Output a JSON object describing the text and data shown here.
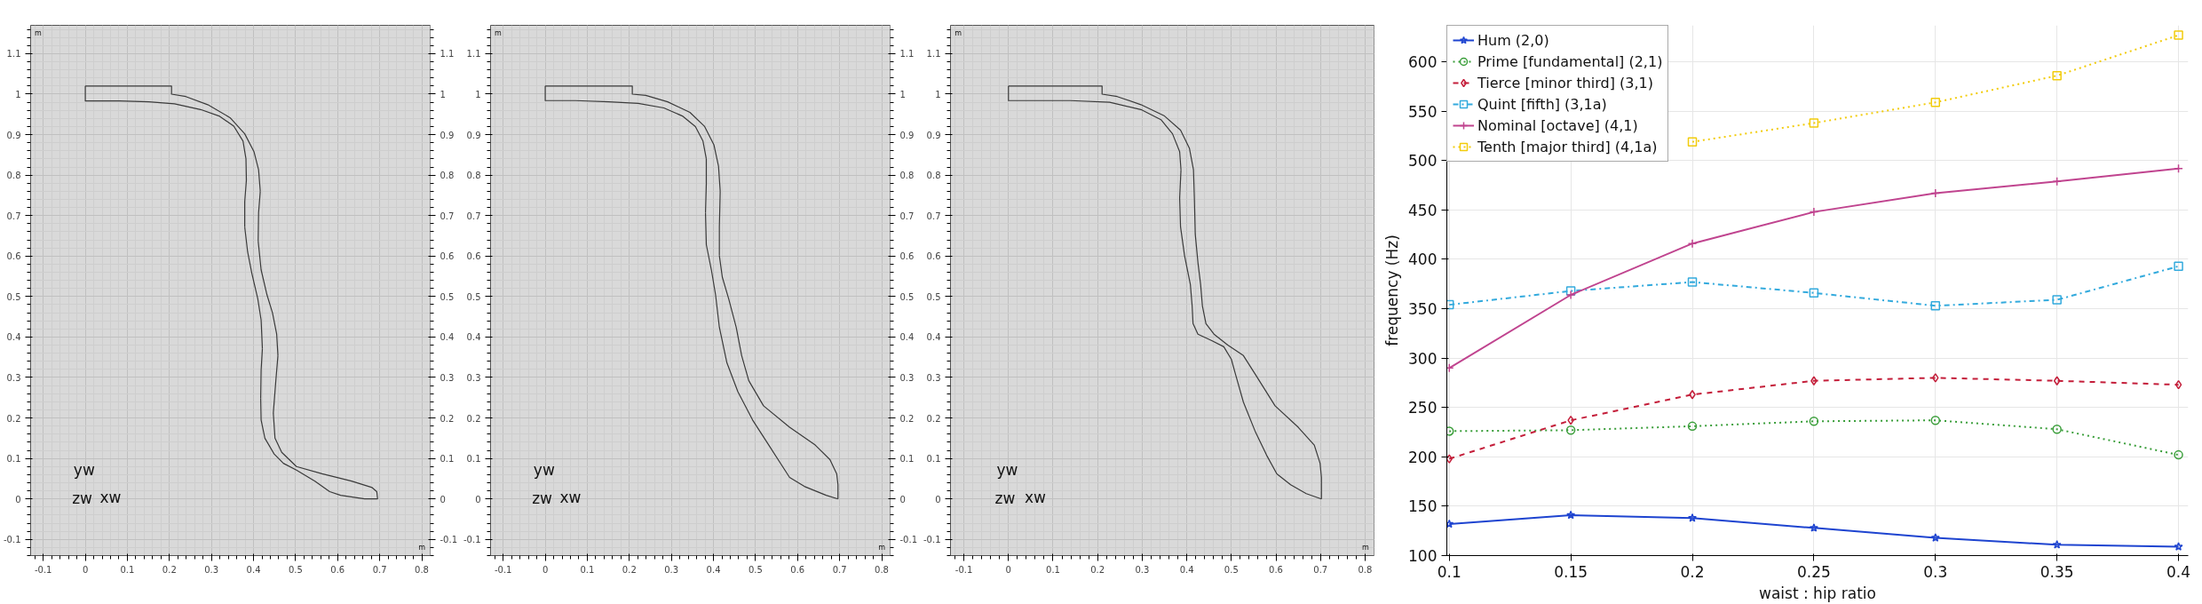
{
  "chart_data": [
    {
      "type": "line",
      "color": "#3a3a3a",
      "series": [
        {
          "x": [
            0,
            0.205,
            0.205,
            0.239,
            0.291,
            0.344,
            0.379,
            0.401,
            0.412,
            0.416
          ],
          "values": [
            1.02,
            1.02,
            1.0,
            0.994,
            0.974,
            0.942,
            0.902,
            0.858,
            0.813,
            0.76
          ]
        },
        {
          "x": [
            0.411,
            0.412,
            0.416
          ],
          "values": [
            0.637,
            0.707,
            0.76
          ]
        },
        {
          "x": [
            0.411,
            0.418,
            0.432,
            0.445,
            0.455,
            0.458
          ],
          "values": [
            0.637,
            0.566,
            0.504,
            0.46,
            0.407,
            0.354
          ]
        },
        {
          "x": [
            0.447,
            0.453,
            0.458
          ],
          "values": [
            0.212,
            0.292,
            0.354
          ]
        },
        {
          "x": [
            0.447,
            0.451,
            0.467,
            0.502,
            0.563,
            0.633,
            0.682,
            0.693,
            0.695
          ],
          "values": [
            0.212,
            0.15,
            0.115,
            0.08,
            0.062,
            0.044,
            0.028,
            0.018,
            0
          ]
        },
        {
          "x": [
            0.417,
            0.418,
            0.427,
            0.449,
            0.471,
            0.502,
            0.546,
            0.581,
            0.607,
            0.664,
            0.695
          ],
          "values": [
            0.248,
            0.195,
            0.15,
            0.111,
            0.088,
            0.071,
            0.044,
            0.018,
            0.009,
            0,
            0
          ]
        },
        {
          "x": [
            0.417,
            0.418,
            0.421
          ],
          "values": [
            0.248,
            0.318,
            0.371
          ]
        },
        {
          "x": [
            0.379,
            0.386,
            0.396,
            0.41,
            0.418,
            0.421
          ],
          "values": [
            0.672,
            0.61,
            0.557,
            0.495,
            0.442,
            0.371
          ]
        },
        {
          "x": [
            0.379,
            0.379,
            0.383
          ],
          "values": [
            0.672,
            0.734,
            0.787
          ]
        },
        {
          "x": [
            0,
            0,
            0.081,
            0.151,
            0.212,
            0.274,
            0.318,
            0.353,
            0.375,
            0.382,
            0.383
          ],
          "values": [
            1.02,
            0.983,
            0.983,
            0.981,
            0.976,
            0.962,
            0.946,
            0.921,
            0.884,
            0.84,
            0.787
          ]
        }
      ],
      "xlim": [
        -0.13,
        0.82
      ],
      "ylim": [
        -0.14,
        1.17
      ],
      "xticks": [
        -0.1,
        0,
        0.1,
        0.2,
        0.3,
        0.4,
        0.5,
        0.6,
        0.7,
        0.8
      ],
      "yticks": [
        -0.1,
        0,
        0.1,
        0.2,
        0.3,
        0.4,
        0.5,
        0.6,
        0.7,
        0.8,
        0.9,
        1,
        1.1
      ],
      "y2lim": [
        -0.14,
        1.17
      ],
      "y2ticks": [
        -0.1,
        0,
        0.1,
        0.2,
        0.3,
        0.4,
        0.5,
        0.6,
        0.7,
        0.8,
        0.9,
        1,
        1.1
      ],
      "grid": true,
      "annotations": [
        "m",
        "m",
        "yw",
        "zw",
        "xw"
      ]
    },
    {
      "type": "line",
      "color": "#3a3a3a",
      "series": [
        {
          "x": [
            0,
            0.207,
            0.207,
            0.239,
            0.291,
            0.344,
            0.379,
            0.401,
            0.412,
            0.416
          ],
          "values": [
            1.02,
            1.02,
            1.0,
            0.997,
            0.981,
            0.955,
            0.92,
            0.875,
            0.822,
            0.76
          ]
        },
        {
          "x": [
            0.414,
            0.414,
            0.416
          ],
          "values": [
            0.601,
            0.672,
            0.76
          ]
        },
        {
          "x": [
            0.414,
            0.421,
            0.436,
            0.454,
            0.467,
            0.484,
            0.519,
            0.581,
            0.642,
            0.677,
            0.693,
            0.696,
            0.696
          ],
          "values": [
            0.601,
            0.548,
            0.495,
            0.424,
            0.354,
            0.292,
            0.23,
            0.177,
            0.133,
            0.097,
            0.062,
            0.035,
            0
          ]
        },
        {
          "x": [
            0.381,
            0.383,
            0.395,
            0.405,
            0.414,
            0.432,
            0.458,
            0.493,
            0.537,
            0.581,
            0.616,
            0.668,
            0.696
          ],
          "values": [
            0.707,
            0.628,
            0.566,
            0.504,
            0.424,
            0.336,
            0.265,
            0.195,
            0.124,
            0.053,
            0.031,
            0.009,
            0
          ]
        },
        {
          "x": [
            0.381,
            0.383,
            0.383
          ],
          "values": [
            0.707,
            0.778,
            0.84
          ]
        },
        {
          "x": [
            0,
            0,
            0.072,
            0.151,
            0.221,
            0.282,
            0.326,
            0.357,
            0.375,
            0.383
          ],
          "values": [
            1.02,
            0.984,
            0.984,
            0.981,
            0.977,
            0.966,
            0.946,
            0.92,
            0.884,
            0.84
          ]
        }
      ],
      "xlim": [
        -0.13,
        0.82
      ],
      "ylim": [
        -0.14,
        1.17
      ],
      "xticks": [
        -0.1,
        0,
        0.1,
        0.2,
        0.3,
        0.4,
        0.5,
        0.6,
        0.7,
        0.8
      ],
      "yticks": [
        -0.1,
        0,
        0.1,
        0.2,
        0.3,
        0.4,
        0.5,
        0.6,
        0.7,
        0.8,
        0.9,
        1,
        1.1
      ],
      "y2lim": [
        -0.14,
        1.17
      ],
      "y2ticks": [
        -0.1,
        0,
        0.1,
        0.2,
        0.3,
        0.4,
        0.5,
        0.6,
        0.7,
        0.8,
        0.9,
        1,
        1.1
      ],
      "grid": true,
      "annotations": [
        "m",
        "m",
        "yw",
        "zw",
        "xw"
      ]
    },
    {
      "type": "line",
      "color": "#3a3a3a",
      "series": [
        {
          "x": [
            0,
            0.21,
            0.21,
            0.244,
            0.297,
            0.35,
            0.386,
            0.406,
            0.415,
            0.417,
            0.419,
            0.425,
            0.431,
            0.435,
            0.443,
            0.461,
            0.492,
            0.527,
            0.553,
            0.598,
            0.65,
            0.686,
            0.699,
            0.702,
            0.702
          ],
          "values": [
            1.02,
            1.02,
            1.0,
            0.994,
            0.974,
            0.946,
            0.911,
            0.866,
            0.813,
            0.743,
            0.654,
            0.584,
            0.53,
            0.477,
            0.433,
            0.407,
            0.38,
            0.354,
            0.309,
            0.23,
            0.177,
            0.133,
            0.088,
            0.053,
            0
          ]
        },
        {
          "x": [
            0.384,
            0.386,
            0.395,
            0.408,
            0.412,
            0.414,
            0.425,
            0.456,
            0.483,
            0.5,
            0.509,
            0.527,
            0.553,
            0.58,
            0.602,
            0.633,
            0.668,
            0.702
          ],
          "values": [
            0.743,
            0.672,
            0.601,
            0.53,
            0.477,
            0.433,
            0.407,
            0.391,
            0.376,
            0.345,
            0.309,
            0.239,
            0.168,
            0.106,
            0.062,
            0.035,
            0.013,
            0
          ]
        },
        {
          "x": [
            0.384,
            0.387
          ],
          "values": [
            0.743,
            0.813
          ]
        },
        {
          "x": [
            0,
            0,
            0.139,
            0.227,
            0.297,
            0.342,
            0.368,
            0.384,
            0.387
          ],
          "values": [
            1.02,
            0.984,
            0.984,
            0.98,
            0.962,
            0.937,
            0.902,
            0.858,
            0.813
          ]
        }
      ],
      "xlim": [
        -0.13,
        0.82
      ],
      "ylim": [
        -0.14,
        1.17
      ],
      "xticks": [
        -0.1,
        0,
        0.1,
        0.2,
        0.3,
        0.4,
        0.5,
        0.6,
        0.7,
        0.8
      ],
      "yticks": [
        -0.1,
        0,
        0.1,
        0.2,
        0.3,
        0.4,
        0.5,
        0.6,
        0.7,
        0.8,
        0.9,
        1,
        1.1
      ],
      "grid": true,
      "annotations": [
        "m",
        "m",
        "yw",
        "zw",
        "xw"
      ]
    },
    {
      "type": "line",
      "xlabel": "waist : hip ratio",
      "ylabel": "frequency (Hz)",
      "x": [
        0.1,
        0.15,
        0.2,
        0.25,
        0.3,
        0.35,
        0.4
      ],
      "series": [
        {
          "name": "Hum (2,0)",
          "color": "#1e44d0",
          "marker": "star",
          "line_style": "solid",
          "values": [
            132,
            141,
            138,
            128,
            118,
            111,
            109
          ]
        },
        {
          "name": "Prime [fundamental] (2,1)",
          "color": "#3a9e3a",
          "marker": "circle",
          "line_style": "dotted",
          "values": [
            226,
            227,
            231,
            236,
            237,
            228,
            202
          ]
        },
        {
          "name": "Tierce [minor third] (3,1)",
          "color": "#c41e3a",
          "marker": "diamond",
          "line_style": "dashed",
          "values": [
            198,
            237,
            263,
            277,
            280,
            277,
            273
          ]
        },
        {
          "name": "Quint [fifth] (3,1a)",
          "color": "#33aadd",
          "marker": "square",
          "line_style": "dashdot",
          "values": [
            354,
            368,
            377,
            366,
            353,
            359,
            393
          ]
        },
        {
          "name": "Nominal [octave] (4,1)",
          "color": "#c0448f",
          "marker": "cross",
          "line_style": "solid",
          "values": [
            290,
            364,
            416,
            448,
            467,
            479,
            492
          ]
        },
        {
          "name": "Tenth [major third] (4,1a)",
          "color": "#f2cc0c",
          "marker": "square",
          "line_style": "dotted",
          "values": [
            null,
            null,
            519,
            538,
            559,
            586,
            627
          ]
        }
      ],
      "xlim": [
        0.099,
        0.404
      ],
      "ylim": [
        100,
        637
      ],
      "xticks": [
        0.1,
        0.15,
        0.2,
        0.25,
        0.3,
        0.35,
        0.4
      ],
      "yticks": [
        100,
        150,
        200,
        250,
        300,
        350,
        400,
        450,
        500,
        550,
        600
      ],
      "grid": true,
      "legend": "top left"
    }
  ]
}
